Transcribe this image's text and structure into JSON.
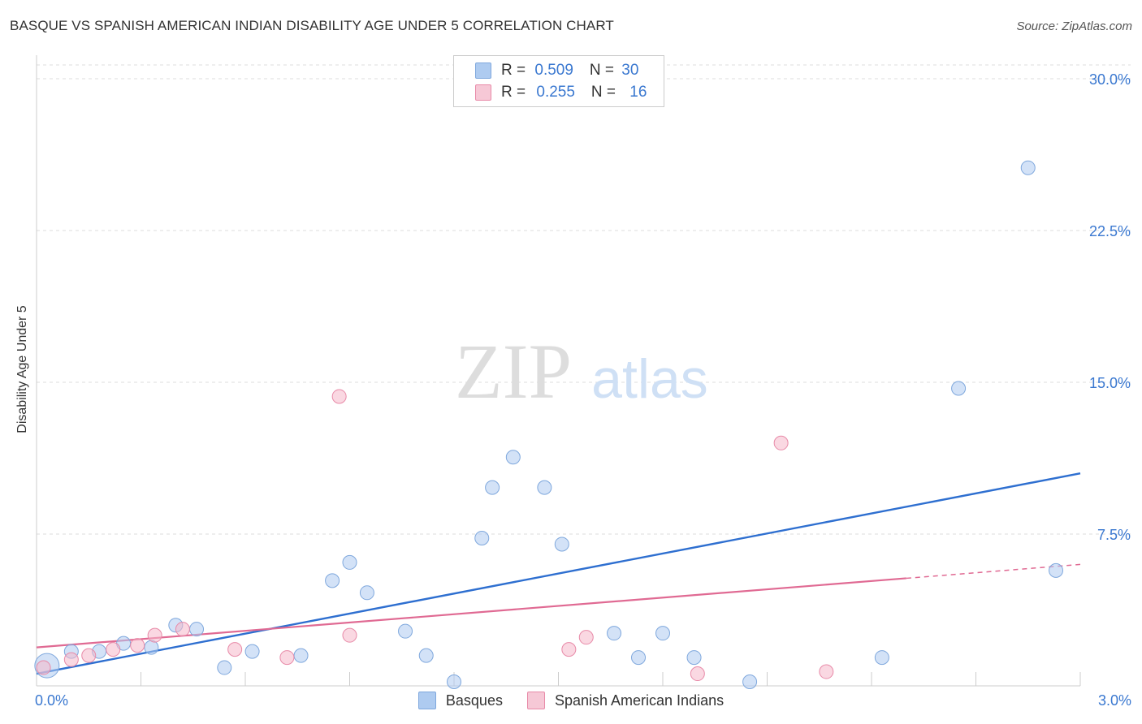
{
  "header": {
    "title": "BASQUE VS SPANISH AMERICAN INDIAN DISABILITY AGE UNDER 5 CORRELATION CHART",
    "source": "Source: ZipAtlas.com"
  },
  "legend": {
    "rows": [
      {
        "r_label": "R = ",
        "r_value": "0.509",
        "n_label": "N = ",
        "n_value": "30",
        "color": "#aecbf0"
      },
      {
        "r_label": "R = ",
        "r_value": "0.255",
        "n_label": "N = ",
        "n_value": "16",
        "color": "#f6b8cb"
      }
    ]
  },
  "watermark": {
    "zip": "ZIP",
    "atlas": "atlas"
  },
  "chart_data": {
    "type": "scatter",
    "title": "BASQUE VS SPANISH AMERICAN INDIAN DISABILITY AGE UNDER 5 CORRELATION CHART",
    "xlabel": "",
    "ylabel": "Disability Age Under 5",
    "xlim": [
      0,
      3.0
    ],
    "ylim": [
      0,
      30.0
    ],
    "x_tick_labels": [
      "0.0%",
      "3.0%"
    ],
    "y_ticks": [
      7.5,
      15.0,
      22.5,
      30.0
    ],
    "y_tick_labels": [
      "7.5%",
      "15.0%",
      "22.5%",
      "30.0%"
    ],
    "grid": true,
    "legend_position": "bottom-center",
    "series": [
      {
        "name": "Basques",
        "color": "#aecbf0",
        "stroke": "#7fa8dd",
        "line_color": "#2e6fd0",
        "trend": {
          "x": [
            0.0,
            3.0
          ],
          "y": [
            0.6,
            10.5
          ]
        },
        "points": [
          {
            "x": 0.03,
            "y": 1.0,
            "big": true
          },
          {
            "x": 0.1,
            "y": 1.7
          },
          {
            "x": 0.18,
            "y": 1.7
          },
          {
            "x": 0.25,
            "y": 2.1
          },
          {
            "x": 0.33,
            "y": 1.9
          },
          {
            "x": 0.4,
            "y": 3.0
          },
          {
            "x": 0.46,
            "y": 2.8
          },
          {
            "x": 0.54,
            "y": 0.9
          },
          {
            "x": 0.62,
            "y": 1.7
          },
          {
            "x": 0.76,
            "y": 1.5
          },
          {
            "x": 0.85,
            "y": 5.2
          },
          {
            "x": 0.9,
            "y": 6.1
          },
          {
            "x": 0.95,
            "y": 4.6
          },
          {
            "x": 1.06,
            "y": 2.7
          },
          {
            "x": 1.12,
            "y": 1.5
          },
          {
            "x": 1.2,
            "y": 0.2
          },
          {
            "x": 1.28,
            "y": 7.3
          },
          {
            "x": 1.31,
            "y": 9.8
          },
          {
            "x": 1.37,
            "y": 11.3
          },
          {
            "x": 1.46,
            "y": 9.8
          },
          {
            "x": 1.51,
            "y": 7.0
          },
          {
            "x": 1.66,
            "y": 2.6
          },
          {
            "x": 1.73,
            "y": 1.4
          },
          {
            "x": 1.8,
            "y": 2.6
          },
          {
            "x": 1.89,
            "y": 1.4
          },
          {
            "x": 2.05,
            "y": 0.2
          },
          {
            "x": 2.43,
            "y": 1.4
          },
          {
            "x": 2.65,
            "y": 14.7
          },
          {
            "x": 2.85,
            "y": 25.6
          },
          {
            "x": 2.93,
            "y": 5.7
          }
        ]
      },
      {
        "name": "Spanish American Indians",
        "color": "#f6b8cb",
        "stroke": "#e88aa8",
        "line_color": "#e06a93",
        "trend": {
          "x": [
            0.0,
            3.0
          ],
          "y": [
            1.9,
            6.0
          ],
          "solid_until": 2.5
        },
        "points": [
          {
            "x": 0.02,
            "y": 0.9
          },
          {
            "x": 0.1,
            "y": 1.3
          },
          {
            "x": 0.15,
            "y": 1.5
          },
          {
            "x": 0.22,
            "y": 1.8
          },
          {
            "x": 0.29,
            "y": 2.0
          },
          {
            "x": 0.34,
            "y": 2.5
          },
          {
            "x": 0.42,
            "y": 2.8
          },
          {
            "x": 0.57,
            "y": 1.8
          },
          {
            "x": 0.72,
            "y": 1.4
          },
          {
            "x": 0.87,
            "y": 14.3
          },
          {
            "x": 0.9,
            "y": 2.5
          },
          {
            "x": 1.53,
            "y": 1.8
          },
          {
            "x": 1.58,
            "y": 2.4
          },
          {
            "x": 1.9,
            "y": 0.6
          },
          {
            "x": 2.14,
            "y": 12.0
          },
          {
            "x": 2.27,
            "y": 0.7
          }
        ]
      }
    ]
  }
}
